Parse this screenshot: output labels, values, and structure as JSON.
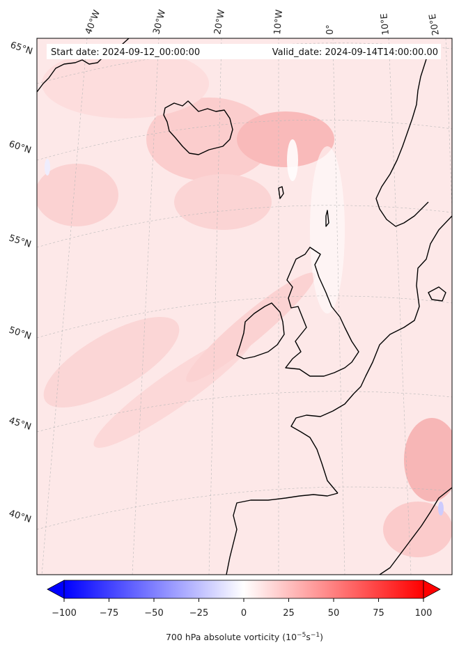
{
  "header": {
    "start_date": "Start date: 2024-09-12_00:00:00",
    "valid_date": "Valid_date: 2024-09-14T14:00:00.00"
  },
  "longitude_labels": [
    "40°W",
    "30°W",
    "20°W",
    "10°W",
    "0°",
    "10°E",
    "20°E"
  ],
  "latitude_labels": [
    "65°N",
    "60°N",
    "55°N",
    "50°N",
    "45°N",
    "40°N"
  ],
  "colorbar": {
    "label": "700 hPa absolute vorticity (10",
    "label_exp1": "−5",
    "label_mid": "s",
    "label_exp2": "−1",
    "label_end": ")",
    "min": -100,
    "max": 100,
    "ticks": [
      "−100",
      "−75",
      "−50",
      "−25",
      "0",
      "25",
      "50",
      "75",
      "100"
    ],
    "colors": {
      "low": "#0000ff",
      "mid": "#ffffff",
      "high": "#ff0000"
    }
  },
  "map": {
    "background_fill": "#fde6e6",
    "land_outline": "#000000",
    "gridline_color": "#bbbbbb"
  }
}
